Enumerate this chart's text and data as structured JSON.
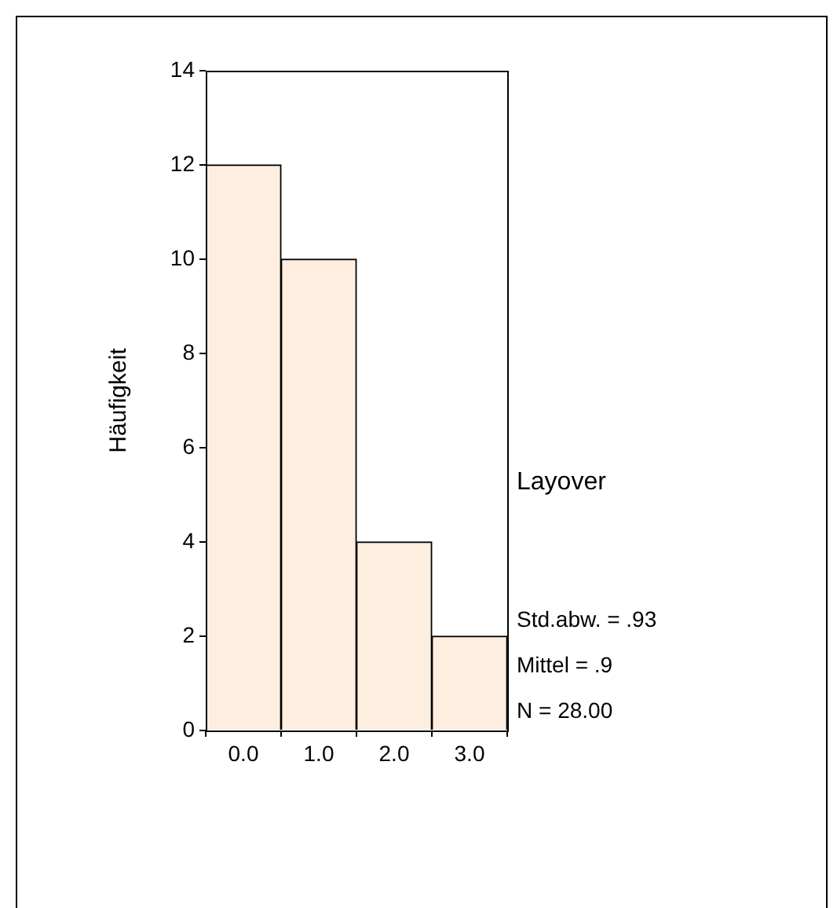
{
  "chart_data": {
    "type": "histogram",
    "title": "Layover",
    "ylabel": "Häufigkeit",
    "bins": [
      -0.5,
      0.5,
      1.5,
      2.5,
      3.5
    ],
    "values": [
      12,
      10,
      4,
      2
    ],
    "color": "#fdeee0",
    "xlim": [
      -0.5,
      3.5
    ],
    "xticks": [
      {
        "value": 0,
        "label": "0.0"
      },
      {
        "value": 1,
        "label": "1.0"
      },
      {
        "value": 2,
        "label": "2.0"
      },
      {
        "value": 3,
        "label": "3.0"
      }
    ],
    "ylim": [
      0,
      14
    ],
    "yticks": [
      0,
      2,
      4,
      6,
      8,
      10,
      12,
      14
    ],
    "annotations": [
      "Std.abw. = .93",
      "Mittel = .9",
      "N = 28.00"
    ],
    "grid": false,
    "legend": false
  }
}
